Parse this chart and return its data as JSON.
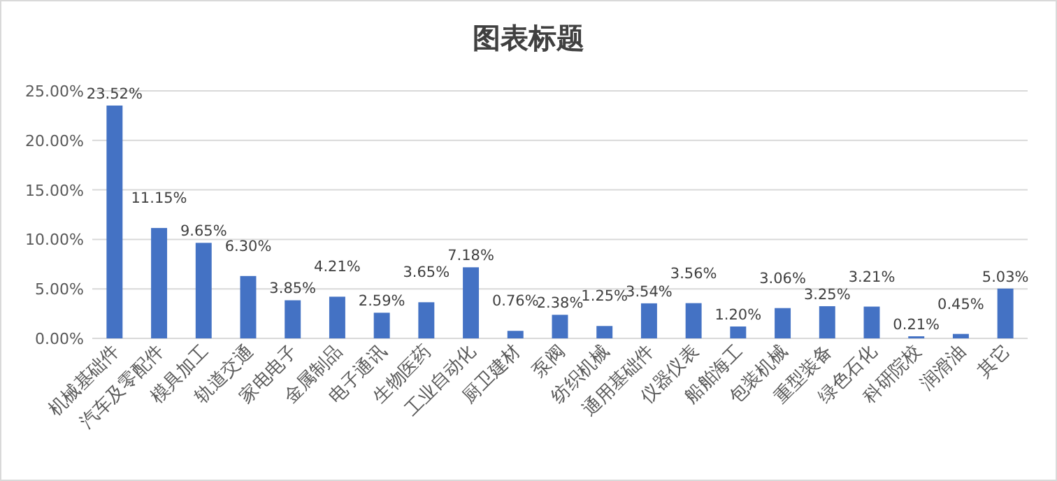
{
  "chart_data": {
    "type": "bar",
    "title": "图表标题",
    "categories": [
      "机械基础件",
      "汽车及零配件",
      "模具加工",
      "轨道交通",
      "家电电子",
      "金属制品",
      "电子通讯",
      "生物医药",
      "工业自动化",
      "厨卫建材",
      "泵阀",
      "纺织机械",
      "通用基础件",
      "仪器仪表",
      "船舶海工",
      "包装机械",
      "重型装备",
      "绿色石化",
      "科研院校",
      "润滑油",
      "其它"
    ],
    "values": [
      23.52,
      11.15,
      9.65,
      6.3,
      3.85,
      4.21,
      2.59,
      3.65,
      7.18,
      0.76,
      2.38,
      1.25,
      3.54,
      3.56,
      1.2,
      3.06,
      3.25,
      3.21,
      0.21,
      0.45,
      5.03
    ],
    "value_labels": [
      "23.52%",
      "11.15%",
      "9.65%",
      "6.30%",
      "3.85%",
      "4.21%",
      "2.59%",
      "3.65%",
      "7.18%",
      "0.76%",
      "2.38%",
      "1.25%",
      "3.54%",
      "3.56%",
      "1.20%",
      "3.06%",
      "3.25%",
      "3.21%",
      "0.21%",
      "0.45%",
      "5.03%"
    ],
    "color": "#4472c4",
    "ylim": [
      0,
      25
    ],
    "yticks": [
      {
        "value": 0,
        "label": "0.00%"
      },
      {
        "value": 5,
        "label": "5.00%"
      },
      {
        "value": 10,
        "label": "10.00%"
      },
      {
        "value": 15,
        "label": "15.00%"
      },
      {
        "value": 20,
        "label": "20.00%"
      },
      {
        "value": 25,
        "label": "25.00%"
      }
    ],
    "grid": "y"
  }
}
